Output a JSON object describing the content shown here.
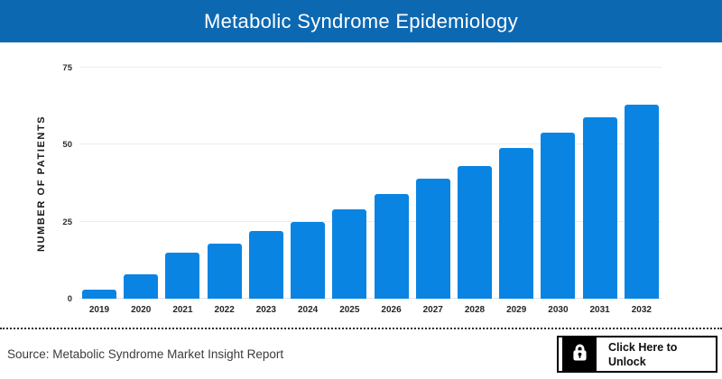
{
  "header": {
    "title": "Metabolic Syndrome Epidemiology",
    "background_color": "#0d68b2",
    "text_color": "#ffffff"
  },
  "chart_data": {
    "type": "bar",
    "title": "Metabolic Syndrome Epidemiology",
    "categories": [
      "2019",
      "2020",
      "2021",
      "2022",
      "2023",
      "2024",
      "2025",
      "2026",
      "2027",
      "2028",
      "2029",
      "2030",
      "2031",
      "2032"
    ],
    "values": [
      3,
      8,
      15,
      18,
      22,
      25,
      29,
      34,
      39,
      43,
      49,
      54,
      59,
      63
    ],
    "xlabel": "",
    "ylabel": "NUMBER OF PATIENTS",
    "ylim": [
      0,
      75
    ],
    "yticks": [
      0,
      25,
      50,
      75
    ],
    "grid": true,
    "legend": "none",
    "bar_color": "#0984e3",
    "gridline_color": "#ececec"
  },
  "footer": {
    "source_text": "Source: Metabolic Syndrome Market Insight Report",
    "unlock_button": {
      "icon": "lock-icon",
      "line1": "Click Here to",
      "line2": "Unlock"
    }
  }
}
